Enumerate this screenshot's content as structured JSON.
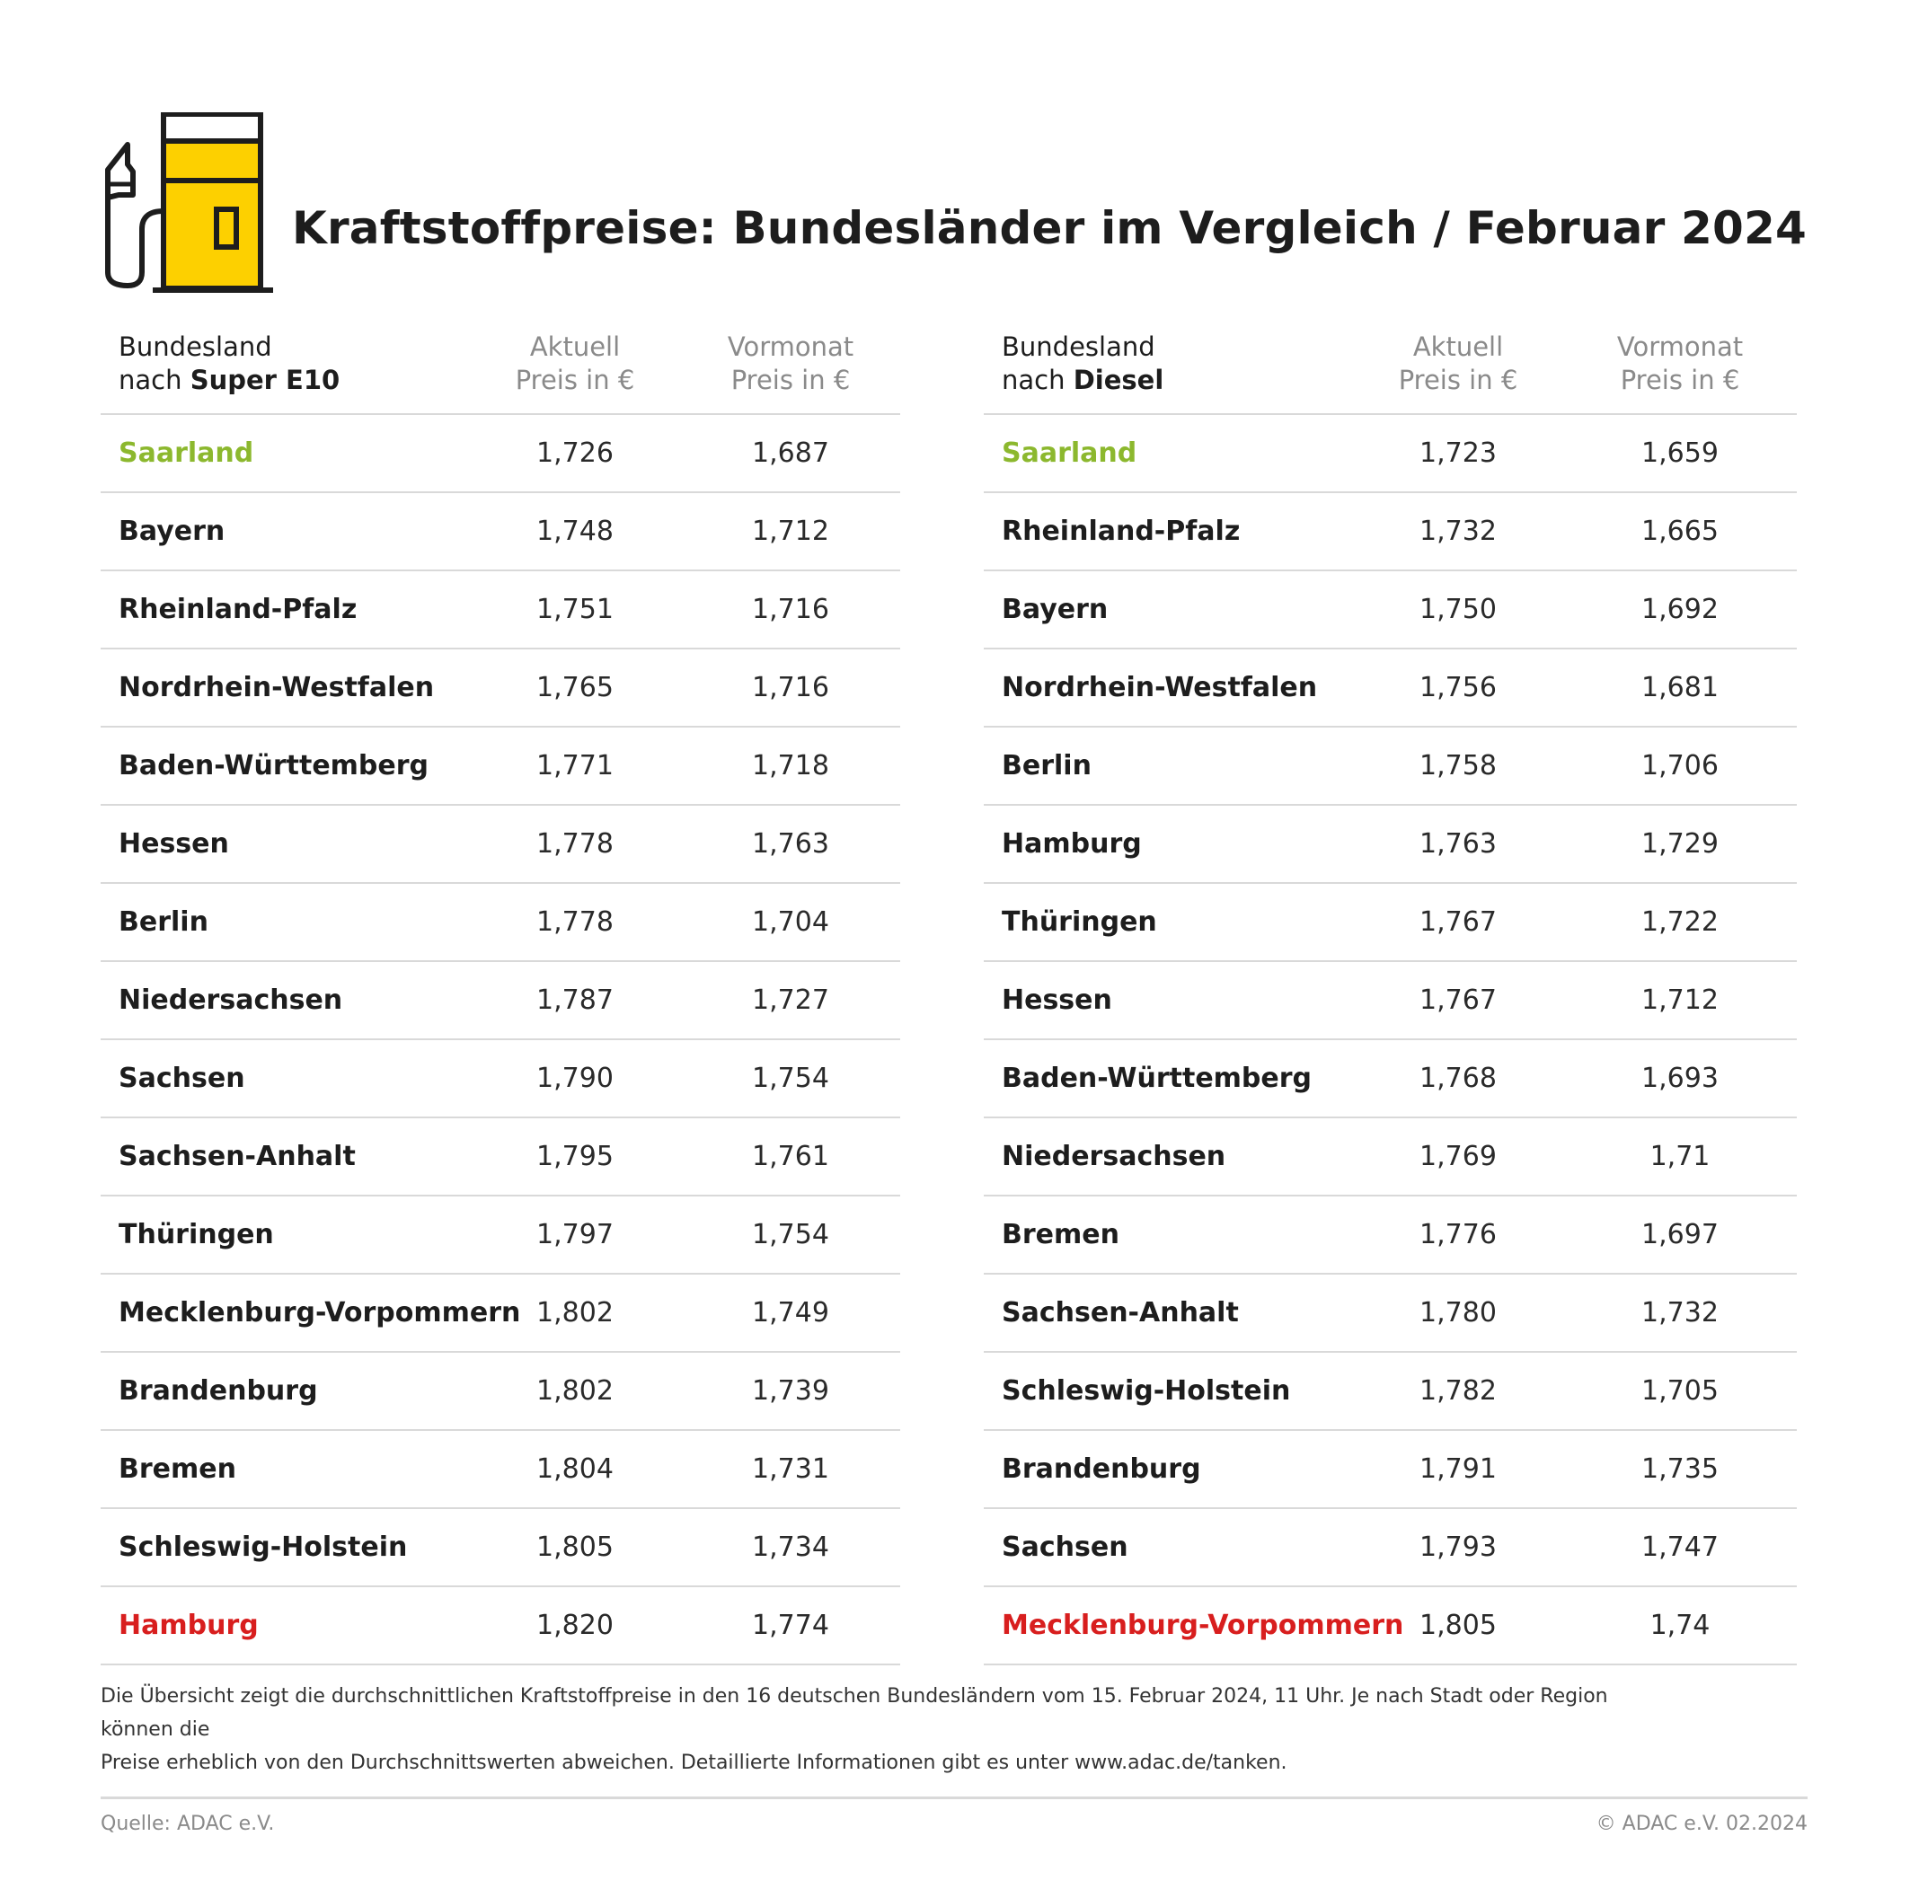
{
  "title": "Kraftstoffpreise: Bundesländer im Vergleich / Februar 2024",
  "icon": "fuel-pump-icon",
  "colors": {
    "accent": "#fdd000",
    "best": "#8cb82e",
    "worst": "#d81e1e"
  },
  "left_table": {
    "header": {
      "name_line1": "Bundesland",
      "name_line2_prefix": "nach ",
      "name_line2_bold": "Super E10",
      "col1_line1": "Aktuell",
      "col1_line2": "Preis in €",
      "col2_line1": "Vormonat",
      "col2_line2": "Preis in €"
    },
    "rows": [
      {
        "name": "Saarland",
        "current": "1,726",
        "previous": "1,687",
        "highlight": "best"
      },
      {
        "name": "Bayern",
        "current": "1,748",
        "previous": "1,712"
      },
      {
        "name": "Rheinland-Pfalz",
        "current": "1,751",
        "previous": "1,716"
      },
      {
        "name": "Nordrhein-Westfalen",
        "current": "1,765",
        "previous": "1,716"
      },
      {
        "name": "Baden-Württemberg",
        "current": "1,771",
        "previous": "1,718"
      },
      {
        "name": "Hessen",
        "current": "1,778",
        "previous": "1,763"
      },
      {
        "name": "Berlin",
        "current": "1,778",
        "previous": "1,704"
      },
      {
        "name": "Niedersachsen",
        "current": "1,787",
        "previous": "1,727"
      },
      {
        "name": "Sachsen",
        "current": "1,790",
        "previous": "1,754"
      },
      {
        "name": "Sachsen-Anhalt",
        "current": "1,795",
        "previous": "1,761"
      },
      {
        "name": "Thüringen",
        "current": "1,797",
        "previous": "1,754"
      },
      {
        "name": "Mecklenburg-Vorpommern",
        "current": "1,802",
        "previous": "1,749"
      },
      {
        "name": "Brandenburg",
        "current": "1,802",
        "previous": "1,739"
      },
      {
        "name": "Bremen",
        "current": "1,804",
        "previous": "1,731"
      },
      {
        "name": "Schleswig-Holstein",
        "current": "1,805",
        "previous": "1,734"
      },
      {
        "name": "Hamburg",
        "current": "1,820",
        "previous": "1,774",
        "highlight": "worst"
      }
    ]
  },
  "right_table": {
    "header": {
      "name_line1": "Bundesland",
      "name_line2_prefix": "nach ",
      "name_line2_bold": "Diesel",
      "col1_line1": "Aktuell",
      "col1_line2": "Preis in €",
      "col2_line1": "Vormonat",
      "col2_line2": "Preis in €"
    },
    "rows": [
      {
        "name": "Saarland",
        "current": "1,723",
        "previous": "1,659",
        "highlight": "best"
      },
      {
        "name": "Rheinland-Pfalz",
        "current": "1,732",
        "previous": "1,665"
      },
      {
        "name": "Bayern",
        "current": "1,750",
        "previous": "1,692"
      },
      {
        "name": "Nordrhein-Westfalen",
        "current": "1,756",
        "previous": "1,681"
      },
      {
        "name": "Berlin",
        "current": "1,758",
        "previous": "1,706"
      },
      {
        "name": "Hamburg",
        "current": "1,763",
        "previous": "1,729"
      },
      {
        "name": "Thüringen",
        "current": "1,767",
        "previous": "1,722"
      },
      {
        "name": "Hessen",
        "current": "1,767",
        "previous": "1,712"
      },
      {
        "name": "Baden-Württemberg",
        "current": "1,768",
        "previous": "1,693"
      },
      {
        "name": "Niedersachsen",
        "current": "1,769",
        "previous": "1,71"
      },
      {
        "name": "Bremen",
        "current": "1,776",
        "previous": "1,697"
      },
      {
        "name": "Sachsen-Anhalt",
        "current": "1,780",
        "previous": "1,732"
      },
      {
        "name": "Schleswig-Holstein",
        "current": "1,782",
        "previous": "1,705"
      },
      {
        "name": "Brandenburg",
        "current": "1,791",
        "previous": "1,735"
      },
      {
        "name": "Sachsen",
        "current": "1,793",
        "previous": "1,747"
      },
      {
        "name": "Mecklenburg-Vorpommern",
        "current": "1,805",
        "previous": "1,74",
        "highlight": "worst"
      }
    ]
  },
  "footnote_line1": "Die Übersicht zeigt die durchschnittlichen Kraftstoffpreise in den 16 deutschen Bundesländern vom 15. Februar 2024, 11 Uhr. Je nach Stadt oder Region können die",
  "footnote_line2": "Preise erheblich von den Durchschnittswerten abweichen. Detaillierte Informationen gibt es unter www.adac.de/tanken.",
  "source": "Quelle: ADAC e.V.",
  "copyright": "© ADAC e.V. 02.2024"
}
